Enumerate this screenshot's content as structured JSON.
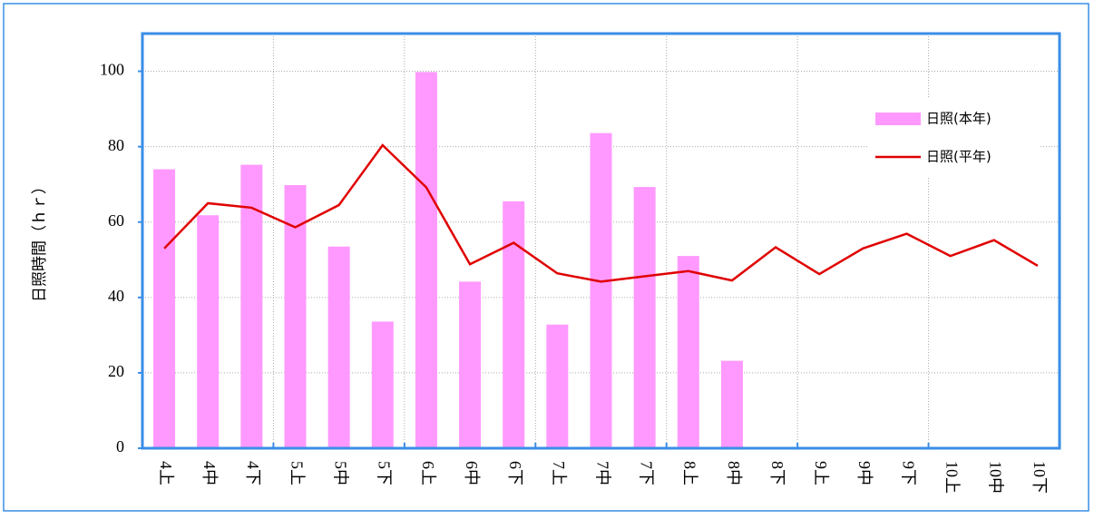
{
  "chart_data": {
    "type": "bar_line",
    "y_label": "日照時間（ｈｒ）",
    "categories": [
      "4上",
      "4中",
      "4下",
      "5上",
      "5中",
      "5下",
      "6上",
      "6中",
      "6下",
      "7上",
      "7中",
      "7下",
      "8上",
      "8中",
      "8下",
      "9上",
      "9中",
      "9下",
      "10上",
      "10中",
      "10下"
    ],
    "series": [
      {
        "name": "日照(本年)",
        "type": "bar",
        "color": "#ff99ff",
        "values": [
          74,
          61.8,
          75.2,
          69.8,
          53.5,
          33.6,
          99.8,
          44.2,
          65.5,
          32.8,
          83.6,
          69.3,
          51,
          23.2,
          null,
          null,
          null,
          null,
          null,
          null,
          null
        ]
      },
      {
        "name": "日照(平年)",
        "type": "line",
        "color": "#e00000",
        "values": [
          53,
          65,
          63.8,
          58.6,
          64.5,
          80.4,
          69.2,
          48.8,
          54.5,
          46.4,
          44.2,
          45.6,
          47,
          44.5,
          53.3,
          46.2,
          53,
          56.9,
          51,
          55.2,
          48.4
        ]
      }
    ],
    "ylim": [
      0,
      110
    ],
    "yticks": [
      0,
      20,
      40,
      60,
      80,
      100
    ],
    "grid": true,
    "legend": "upper-right"
  }
}
